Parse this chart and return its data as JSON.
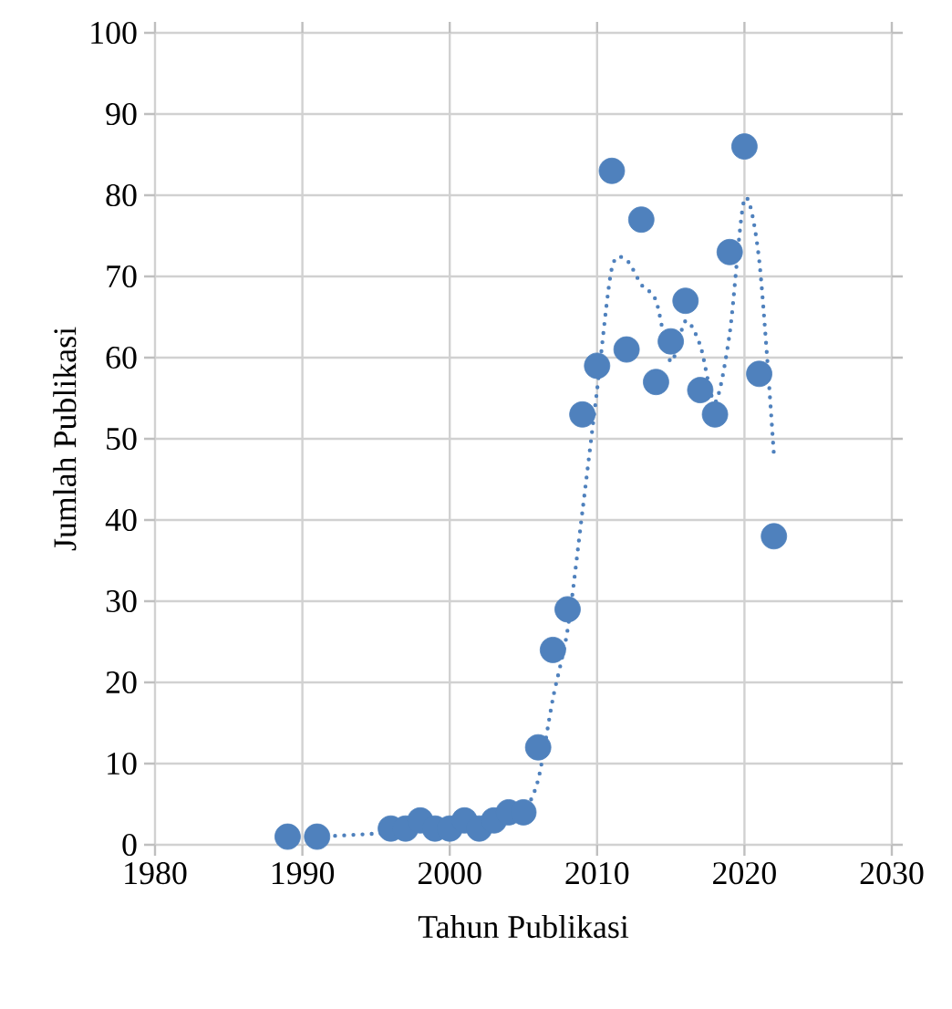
{
  "chart_data": {
    "type": "scatter",
    "xlabel": "Tahun Publikasi",
    "ylabel": "Jumlah Publikasi",
    "xlim": [
      1980,
      2030
    ],
    "xticks": [
      1980,
      1990,
      2000,
      2010,
      2020,
      2030
    ],
    "ylim": [
      0,
      100
    ],
    "yticks": [
      0,
      10,
      20,
      30,
      40,
      50,
      60,
      70,
      80,
      90,
      100
    ],
    "grid": true,
    "series": [
      {
        "color": "#4f81bd",
        "marker": "circle",
        "x": [
          1989,
          1991,
          1996,
          1997,
          1998,
          1999,
          2000,
          2001,
          2002,
          2003,
          2004,
          2005,
          2006,
          2007,
          2008,
          2009,
          2010,
          2011,
          2012,
          2013,
          2014,
          2015,
          2016,
          2017,
          2018,
          2019,
          2020,
          2021,
          2022
        ],
        "values": [
          1,
          1,
          2,
          2,
          3,
          2,
          2,
          3,
          2,
          3,
          4,
          4,
          12,
          24,
          29,
          53,
          59,
          83,
          61,
          77,
          57,
          62,
          67,
          56,
          53,
          73,
          86,
          58,
          38
        ]
      },
      {
        "type": "line",
        "color": "#4f81bd",
        "marker": "none",
        "line_style": "dotted",
        "x": [
          1991,
          1996,
          1997,
          1998,
          1999,
          2000,
          2001,
          2002,
          2003,
          2004,
          2005,
          2006,
          2007,
          2008,
          2009,
          2010,
          2011,
          2012,
          2013,
          2014,
          2015,
          2016,
          2017,
          2018,
          2019,
          2020,
          2021,
          2022
        ],
        "values": [
          1,
          1.5,
          2,
          2.5,
          2.5,
          2,
          2.5,
          2.5,
          2.5,
          3.5,
          4,
          8,
          18,
          26.5,
          41,
          56,
          71,
          72,
          69,
          67,
          59.5,
          64.5,
          61.5,
          54.5,
          63,
          79.5,
          72,
          48
        ]
      }
    ]
  }
}
